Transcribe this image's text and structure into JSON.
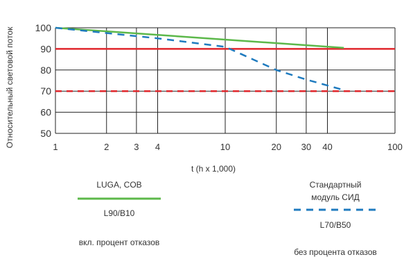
{
  "chart_data": {
    "type": "line",
    "title": "",
    "xlabel": "t (h x 1,000)",
    "ylabel": "Относительный световой поток",
    "x_scale": "log",
    "xlim": [
      1,
      100
    ],
    "ylim": [
      50,
      100
    ],
    "x_ticks": [
      "1",
      "2",
      "3",
      "4",
      "10",
      "20",
      "30",
      "40",
      "100"
    ],
    "y_ticks": [
      "100",
      "90",
      "80",
      "70",
      "60",
      "50"
    ],
    "grid": true,
    "series": [
      {
        "name": "LUGA, COB",
        "style": "solid",
        "color": "#5cb84a",
        "x": [
          1,
          50
        ],
        "y": [
          100,
          90.5
        ]
      },
      {
        "name": "Стандартный модуль СИД",
        "style": "dashed",
        "color": "#1f7bbf",
        "x": [
          1,
          4,
          10,
          20,
          30,
          50
        ],
        "y": [
          100,
          95,
          91,
          80,
          75.5,
          70.5
        ]
      }
    ],
    "reference_lines": [
      {
        "y": 90,
        "style": "solid",
        "color": "#e0262b"
      },
      {
        "y": 70,
        "style": "dashed",
        "color": "#e0262b"
      }
    ],
    "legend": {
      "placement": "bottom",
      "left": {
        "title": "LUGA, COB",
        "code": "L90/B10",
        "note": "вкл. процент отказов"
      },
      "right": {
        "title_line1": "Стандартный",
        "title_line2": "модуль СИД",
        "code": "L70/B50",
        "note": "без процента отказов"
      }
    }
  }
}
